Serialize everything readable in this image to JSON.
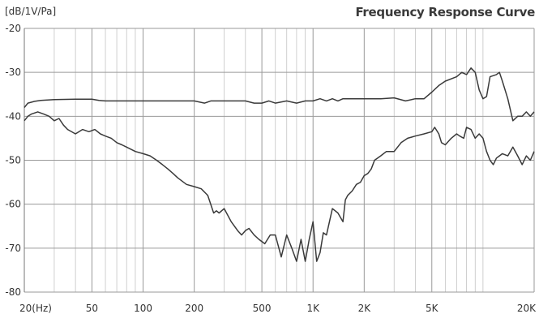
{
  "header": {
    "unit_label": "[dB/1V/Pa]",
    "title": "Frequency Response Curve"
  },
  "chart_data": {
    "type": "line",
    "title": "Frequency Response Curve",
    "ylabel": "[dB/1V/Pa]",
    "xlabel": "",
    "xscale": "log",
    "xlim": [
      20,
      20000
    ],
    "ylim": [
      -80,
      -20
    ],
    "grid": true,
    "y_ticks": [
      -20,
      -30,
      -40,
      -50,
      -60,
      -70,
      -80
    ],
    "y_tick_labels": [
      "-20",
      "-30",
      "-40",
      "-50",
      "-60",
      "-70",
      "-80"
    ],
    "x_ticks": [
      20,
      50,
      100,
      200,
      500,
      1000,
      2000,
      5000,
      20000
    ],
    "x_tick_labels": [
      "20(Hz)",
      "50",
      "100",
      "200",
      "500",
      "1K",
      "2K",
      "5K",
      "20K"
    ],
    "line_color": "#3a3a3a",
    "series": [
      {
        "x": [
          20,
          21,
          23,
          25,
          30,
          40,
          50,
          55,
          60,
          100,
          200,
          230,
          250,
          300,
          400,
          450,
          500,
          550,
          600,
          700,
          800,
          900,
          1000,
          1100,
          1200,
          1300,
          1400,
          1500,
          2000,
          2500,
          3000,
          3500,
          4000,
          4500,
          5000,
          5500,
          6000,
          7000,
          7500,
          8000,
          8500,
          9000,
          9500,
          10000,
          10500,
          11000,
          12000,
          12500,
          13000,
          14000,
          15000,
          16000,
          17000,
          18000,
          19000,
          20000
        ],
        "values": [
          -38,
          -37,
          -36.6,
          -36.4,
          -36.2,
          -36.1,
          -36.1,
          -36.4,
          -36.5,
          -36.5,
          -36.5,
          -37,
          -36.5,
          -36.5,
          -36.5,
          -37,
          -37,
          -36.5,
          -37,
          -36.5,
          -37,
          -36.5,
          -36.5,
          -36,
          -36.5,
          -36,
          -36.5,
          -36,
          -36,
          -36,
          -35.8,
          -36.5,
          -36,
          -36,
          -34.5,
          -33,
          -32,
          -31,
          -30,
          -30.5,
          -29,
          -30,
          -34,
          -36,
          -35.5,
          -31,
          -30.5,
          -30,
          -32,
          -36,
          -41,
          -40,
          -40,
          -39,
          -40,
          -39
        ]
      },
      {
        "x": [
          20,
          21,
          22,
          24,
          26,
          28,
          30,
          32,
          34,
          36,
          40,
          44,
          48,
          52,
          56,
          60,
          65,
          70,
          75,
          80,
          90,
          100,
          110,
          120,
          130,
          140,
          150,
          160,
          180,
          200,
          220,
          240,
          260,
          270,
          280,
          300,
          330,
          360,
          380,
          400,
          420,
          450,
          480,
          520,
          560,
          600,
          650,
          700,
          750,
          800,
          850,
          900,
          950,
          1000,
          1050,
          1100,
          1150,
          1200,
          1300,
          1400,
          1500,
          1550,
          1600,
          1700,
          1800,
          1900,
          2000,
          2100,
          2200,
          2300,
          2500,
          2700,
          3000,
          3300,
          3600,
          4000,
          4500,
          5000,
          5200,
          5500,
          5700,
          6000,
          6500,
          7000,
          7300,
          7700,
          8000,
          8500,
          9000,
          9500,
          10000,
          10500,
          11000,
          11500,
          12000,
          12500,
          13000,
          14000,
          15000,
          16000,
          17000,
          18000,
          19000,
          20000
        ],
        "values": [
          -41,
          -40,
          -39.5,
          -39,
          -39.5,
          -40,
          -41,
          -40.5,
          -42,
          -43,
          -44,
          -43,
          -43.5,
          -43,
          -44,
          -44.5,
          -45,
          -46,
          -46.5,
          -47,
          -48,
          -48.5,
          -49,
          -50,
          -51,
          -52,
          -53,
          -54,
          -55.5,
          -56,
          -56.5,
          -58,
          -62,
          -61.5,
          -62,
          -61,
          -64,
          -66,
          -67,
          -66,
          -65.5,
          -67,
          -68,
          -69,
          -67,
          -67,
          -72,
          -67,
          -70,
          -73,
          -68,
          -73,
          -68,
          -64,
          -73,
          -71,
          -66.5,
          -67,
          -61,
          -62,
          -64,
          -59,
          -58,
          -57,
          -55.5,
          -55,
          -53.5,
          -53,
          -52,
          -50,
          -49,
          -48,
          -48,
          -46,
          -45,
          -44.5,
          -44,
          -43.5,
          -42.5,
          -44,
          -46,
          -46.5,
          -45,
          -44,
          -44.5,
          -45,
          -42.5,
          -43,
          -45,
          -44,
          -45,
          -48,
          -50,
          -51,
          -49.5,
          -49,
          -48.5,
          -49,
          -47,
          -49,
          -51,
          -49,
          -50,
          -48
        ]
      }
    ]
  }
}
